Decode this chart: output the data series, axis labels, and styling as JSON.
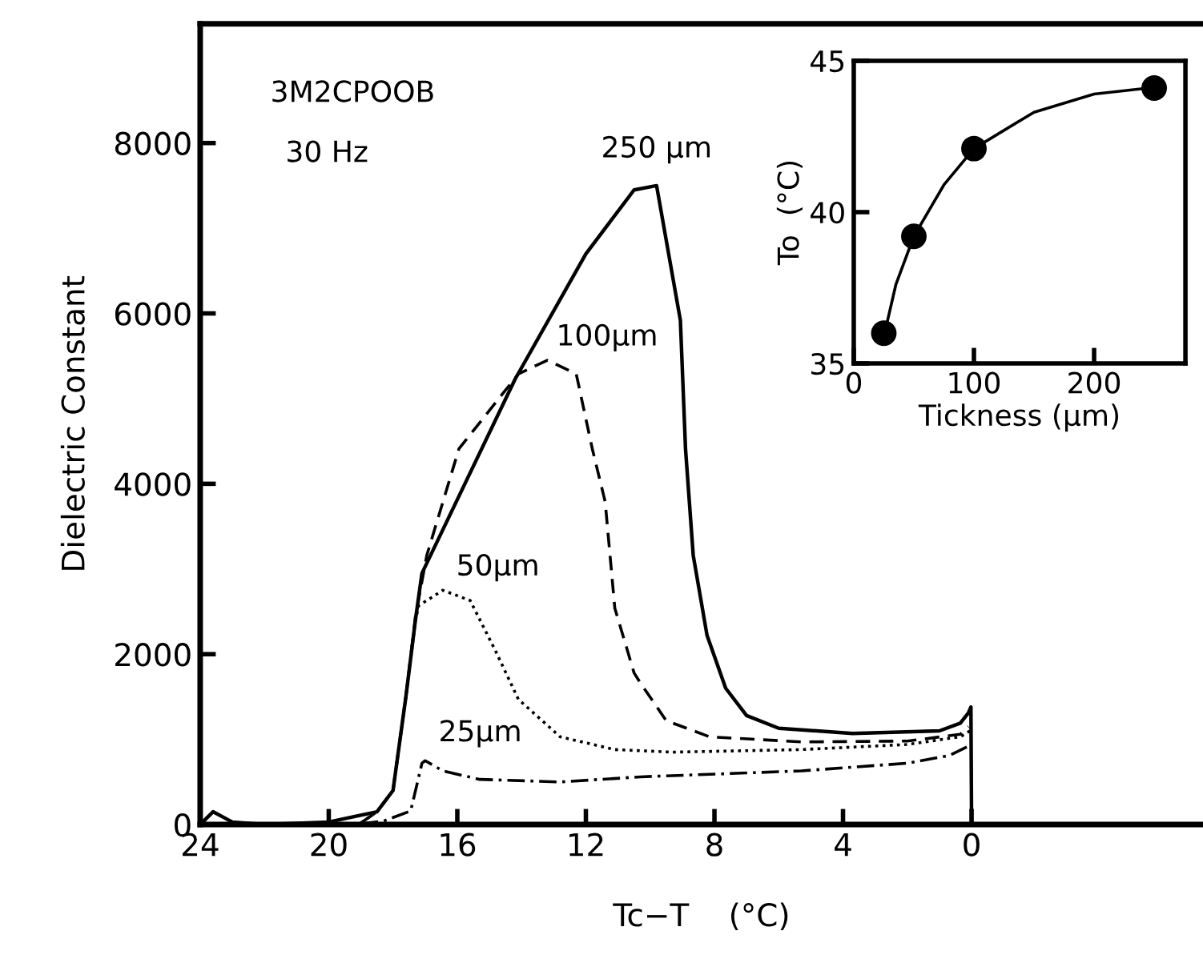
{
  "chart_data": [
    {
      "type": "line",
      "xlabel": "Tc−T    (°C)",
      "ylabel": "Dielectric Constant",
      "annotations": [
        "3M2CPOOB",
        "30 Hz"
      ],
      "xlim": [
        24,
        -7.2
      ],
      "ylim": [
        0,
        9400
      ],
      "xticks": [
        24,
        20,
        16,
        12,
        8,
        4,
        0
      ],
      "yticks": [
        0,
        2000,
        4000,
        6000,
        8000
      ],
      "series": [
        {
          "name": "250 µm",
          "color": "#000000",
          "line_style": "solid",
          "x": [
            24,
            23.6,
            23,
            22,
            20,
            18.5,
            18,
            17.6,
            17.3,
            17.1,
            14.2,
            12,
            10.5,
            9.8,
            9.06,
            8.9,
            8.66,
            8.23,
            7.65,
            7.0,
            6.0,
            3.7,
            1.0,
            0.35,
            0.1,
            0.02,
            0
          ],
          "values": [
            0,
            150,
            30,
            0,
            30,
            150,
            400,
            1500,
            2410,
            2950,
            5230,
            6700,
            7450,
            7500,
            5920,
            4410,
            3160,
            2220,
            1600,
            1280,
            1130,
            1070,
            1100,
            1190,
            1310,
            1380,
            0
          ]
        },
        {
          "name": "100µm",
          "color": "#000000",
          "line_style": "dashed",
          "x": [
            19,
            18.5,
            18,
            17.6,
            17.3,
            16.95,
            15.95,
            14.1,
            13.2,
            12.3,
            11.8,
            11.4,
            11.1,
            10.5,
            10.3,
            9.5,
            8.15,
            5.3,
            2.0,
            0.35,
            0.1
          ],
          "values": [
            20,
            150,
            400,
            1500,
            2450,
            3160,
            4410,
            5290,
            5450,
            5290,
            4410,
            3790,
            2540,
            1780,
            1660,
            1220,
            1030,
            970,
            980,
            1060,
            1150
          ]
        },
        {
          "name": "50µm",
          "color": "#000000",
          "line_style": "dotted",
          "x": [
            19,
            18.5,
            18,
            17.6,
            17.3,
            17.2,
            16.45,
            15.6,
            14.8,
            14.1,
            12.8,
            11.1,
            9.3,
            5.3,
            2.0,
            0.35,
            0.05
          ],
          "values": [
            20,
            150,
            400,
            1500,
            2400,
            2570,
            2750,
            2630,
            2030,
            1470,
            1030,
            880,
            850,
            880,
            940,
            1030,
            1100
          ]
        },
        {
          "name": "25µm",
          "color": "#000000",
          "line_style": "dashdot",
          "x": [
            19,
            18.3,
            17.45,
            17.1,
            17.0,
            16.45,
            15.3,
            12.8,
            10.3,
            5.3,
            2.0,
            0.7,
            0.15
          ],
          "values": [
            10,
            40,
            160,
            720,
            750,
            630,
            530,
            500,
            560,
            630,
            720,
            810,
            910
          ]
        }
      ]
    },
    {
      "type": "scatter",
      "xlabel": "Tickness (µm)",
      "ylabel": "To  (°C)",
      "xlim": [
        0,
        276
      ],
      "ylim": [
        35,
        45
      ],
      "xticks": [
        0,
        100,
        200
      ],
      "yticks": [
        35,
        40,
        45
      ],
      "series": [
        {
          "color": "#000000",
          "marker": "circle",
          "x": [
            25,
            50,
            100,
            250
          ],
          "values": [
            36,
            39.2,
            42.1,
            44.1
          ]
        },
        {
          "type": "line",
          "color": "#000000",
          "line_style": "solid",
          "x": [
            28,
            35,
            50,
            75,
            100,
            150,
            200,
            245
          ],
          "values": [
            36.4,
            37.6,
            39.2,
            40.9,
            42.1,
            43.3,
            43.9,
            44.1
          ]
        }
      ]
    }
  ]
}
